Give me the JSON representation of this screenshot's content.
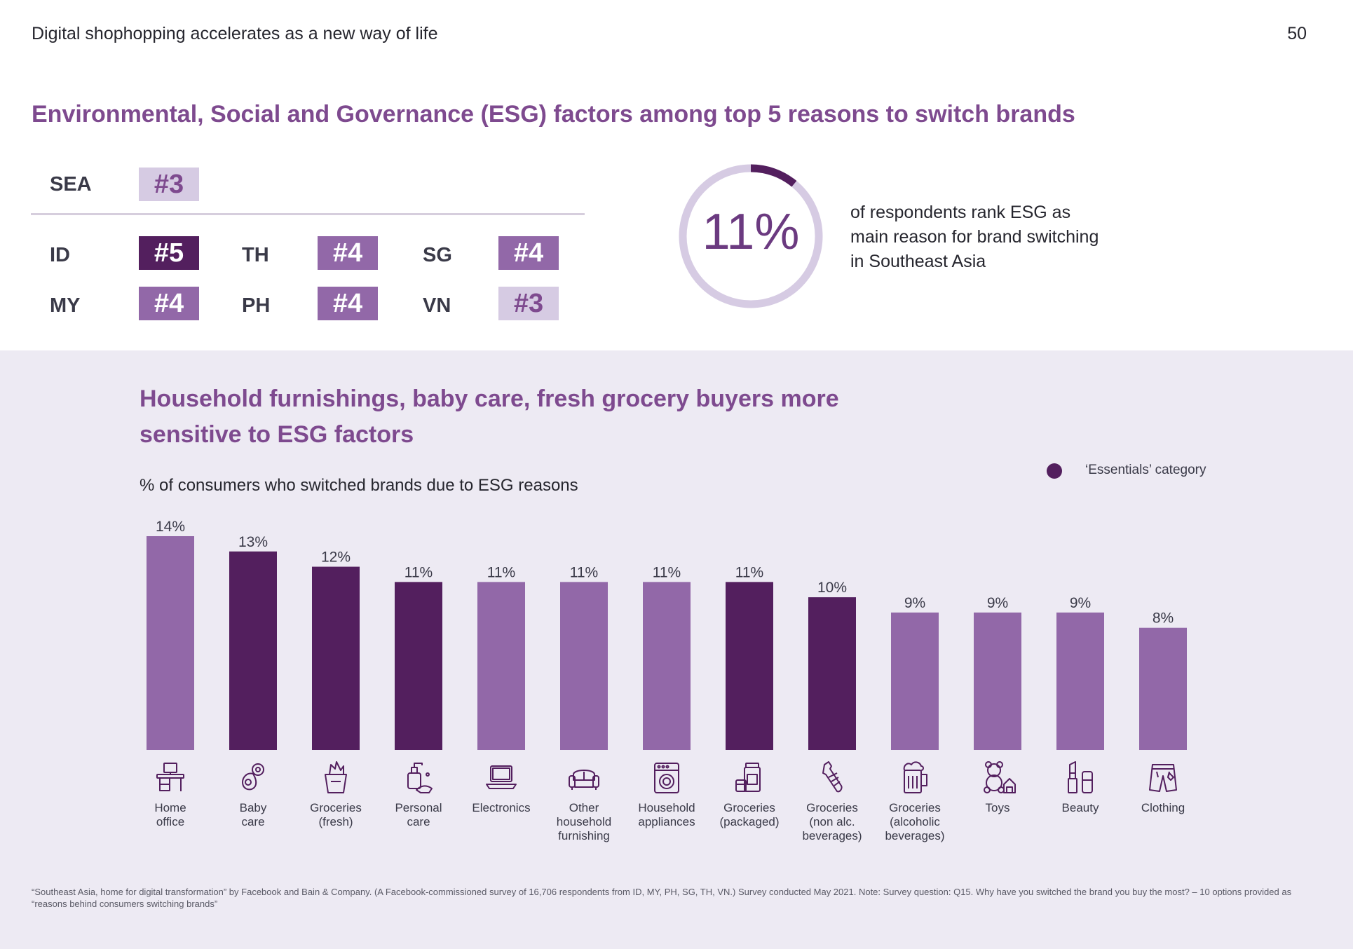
{
  "header": {
    "title": "Digital shophopping accelerates as a new way of life",
    "page_number": "50"
  },
  "esg": {
    "heading": "Environmental, Social and Governance (ESG) factors among top 5 reasons to switch brands",
    "sea": {
      "label": "SEA",
      "rank": "#3",
      "color": "#d6cbe3",
      "text_color": "#7e4a8f"
    },
    "countries": [
      {
        "label": "ID",
        "rank": "#5",
        "color": "#531f5e",
        "text_color": "#ffffff"
      },
      {
        "label": "TH",
        "rank": "#4",
        "color": "#9268a8",
        "text_color": "#ffffff"
      },
      {
        "label": "SG",
        "rank": "#4",
        "color": "#9268a8",
        "text_color": "#ffffff"
      },
      {
        "label": "MY",
        "rank": "#4",
        "color": "#9268a8",
        "text_color": "#ffffff"
      },
      {
        "label": "PH",
        "rank": "#4",
        "color": "#9268a8",
        "text_color": "#ffffff"
      },
      {
        "label": "VN",
        "rank": "#3",
        "color": "#d6cbe3",
        "text_color": "#7e4a8f"
      }
    ],
    "stat_value": "11%",
    "stat_fraction": 0.11,
    "stat_description": "of respondents rank ESG as main reason for brand switching in Southeast Asia"
  },
  "section": {
    "heading": "Household furnishings, baby care, fresh grocery buyers more sensitive to ESG factors",
    "chart_subtitle": "% of consumers who switched brands due to ESG reasons",
    "legend_label": "‘Essentials’ category"
  },
  "colors": {
    "essential": "#531f5e",
    "other": "#9268a8",
    "track": "#d6cbe3",
    "accent": "#7e4a8f"
  },
  "chart_data": {
    "type": "bar",
    "categories": [
      "Home office",
      "Baby care",
      "Groceries (fresh)",
      "Personal care",
      "Electronics",
      "Other household furnishing",
      "Household appliances",
      "Groceries (packaged)",
      "Groceries (non alc. beverages)",
      "Groceries (alcoholic beverages)",
      "Toys",
      "Beauty",
      "Clothing"
    ],
    "values": [
      14,
      13,
      12,
      11,
      11,
      11,
      11,
      11,
      10,
      9,
      9,
      9,
      8
    ],
    "value_labels": [
      "14%",
      "13%",
      "12%",
      "11%",
      "11%",
      "11%",
      "11%",
      "11%",
      "10%",
      "9%",
      "9%",
      "9%",
      "8%"
    ],
    "essentials": [
      false,
      true,
      true,
      true,
      false,
      false,
      false,
      true,
      true,
      false,
      false,
      false,
      false
    ],
    "ylabel": "% of consumers who switched brands due to ESG reasons",
    "ylim": [
      0,
      14
    ]
  },
  "categories_display": [
    {
      "label": "Home\noffice",
      "icon": "desk-icon"
    },
    {
      "label": "Baby\ncare",
      "icon": "pacifier-icon"
    },
    {
      "label": "Groceries\n(fresh)",
      "icon": "grocery-bag-icon"
    },
    {
      "label": "Personal\ncare",
      "icon": "soap-dispenser-icon"
    },
    {
      "label": "Electronics",
      "icon": "laptop-icon"
    },
    {
      "label": "Other\nhousehold\nfurnishing",
      "icon": "sofa-icon"
    },
    {
      "label": "Household\nappliances",
      "icon": "washing-machine-icon"
    },
    {
      "label": "Groceries\n(packaged)",
      "icon": "jar-icon"
    },
    {
      "label": "Groceries\n(non alc.\nbeverages)",
      "icon": "bottle-icon"
    },
    {
      "label": "Groceries\n(alcoholic\nbeverages)",
      "icon": "beer-mug-icon"
    },
    {
      "label": "Toys",
      "icon": "teddy-bear-icon"
    },
    {
      "label": "Beauty",
      "icon": "lipstick-icon"
    },
    {
      "label": "Clothing",
      "icon": "shorts-icon"
    }
  ],
  "footnote": "“Southeast Asia, home for digital transformation” by Facebook and Bain & Company. (A Facebook-commissioned survey of 16,706 respondents from ID, MY, PH, SG, TH, VN.) Survey conducted May 2021. Note: Survey question: Q15. Why have you switched the brand you buy the most? – 10 options provided as “reasons behind consumers switching brands”"
}
